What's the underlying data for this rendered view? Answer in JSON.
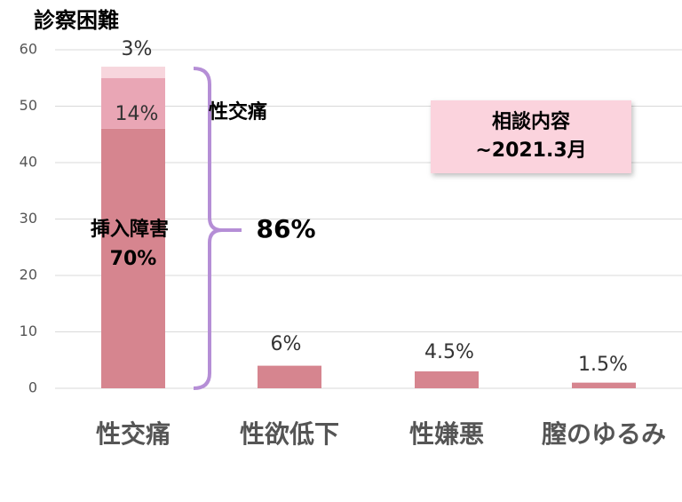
{
  "chart_data": {
    "type": "bar",
    "stacked": true,
    "title": "診察困難",
    "categories": [
      "性交痛",
      "性欲低下",
      "性嫌悪",
      "膣のゆるみ"
    ],
    "series": [
      {
        "name": "挿入障害",
        "color": "#d6858f",
        "values": [
          46,
          4,
          3,
          1
        ]
      },
      {
        "color": "#e9a6b5",
        "values": [
          9,
          null,
          null,
          null
        ]
      },
      {
        "color": "#f7d6dd",
        "values": [
          2,
          null,
          null,
          null
        ]
      }
    ],
    "ylim": [
      0,
      60
    ],
    "yticks": [
      0,
      10,
      20,
      30,
      40,
      50,
      60
    ],
    "grid": true,
    "annotations": [
      "70%",
      "14%",
      "3%",
      "6%",
      "4.5%",
      "1.5%",
      "性交痛",
      "86%"
    ],
    "box_text": [
      "相談内容",
      "~2021.3月"
    ]
  }
}
